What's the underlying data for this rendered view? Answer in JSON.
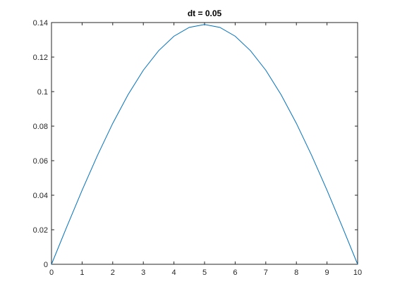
{
  "chart_data": {
    "type": "line",
    "title": "dt = 0.05",
    "xlabel": "",
    "ylabel": "",
    "xlim": [
      0,
      10
    ],
    "ylim": [
      0,
      0.14
    ],
    "xticks": [
      "0",
      "1",
      "2",
      "3",
      "4",
      "5",
      "6",
      "7",
      "8",
      "9",
      "10"
    ],
    "yticks": [
      "0",
      "0.02",
      "0.04",
      "0.06",
      "0.08",
      "0.1",
      "0.12",
      "0.14"
    ],
    "grid": false,
    "box": true,
    "line_color": "#0072BD",
    "series": [
      {
        "x": [
          0,
          0.5,
          1,
          1.5,
          2,
          2.5,
          3,
          3.5,
          4,
          4.5,
          5,
          5.5,
          6,
          6.5,
          7,
          7.5,
          8,
          8.5,
          9,
          9.5,
          10
        ],
        "y": [
          0,
          0.0217,
          0.0429,
          0.063,
          0.0816,
          0.0982,
          0.1124,
          0.1237,
          0.1321,
          0.1372,
          0.1389,
          0.1372,
          0.1321,
          0.1237,
          0.1124,
          0.0982,
          0.0816,
          0.063,
          0.0429,
          0.0217,
          0
        ]
      }
    ]
  }
}
